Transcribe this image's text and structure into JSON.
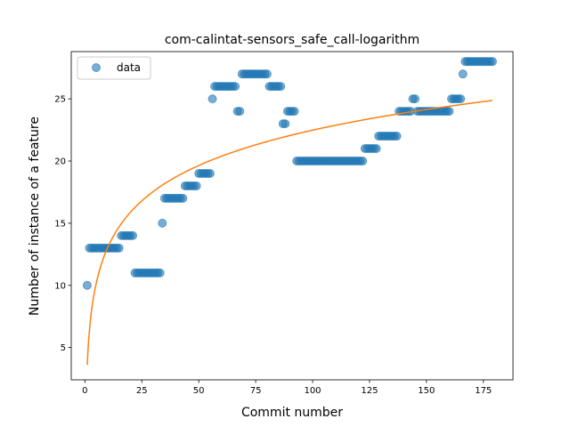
{
  "chart_data": {
    "type": "scatter",
    "title": "com-calintat-sensors_safe_call-logarithm",
    "xlabel": "Commit number",
    "ylabel": "Number of instance of a feature",
    "xlim": [
      -6,
      188
    ],
    "ylim": [
      2.4,
      28.8
    ],
    "xticks": [
      0,
      25,
      50,
      75,
      100,
      125,
      150,
      175
    ],
    "yticks": [
      5,
      10,
      15,
      20,
      25
    ],
    "grid": false,
    "legend": {
      "position": "top-left",
      "entries": [
        "data"
      ]
    },
    "colors": {
      "scatter": "#1f77b4",
      "fit": "#ff7f0e"
    },
    "series": [
      {
        "name": "data",
        "kind": "scatter",
        "runs": [
          [
            1,
            1,
            10
          ],
          [
            2,
            15,
            13
          ],
          [
            16,
            21,
            14
          ],
          [
            22,
            33,
            11
          ],
          [
            34,
            34,
            15
          ],
          [
            35,
            43,
            17
          ],
          [
            44,
            49,
            18
          ],
          [
            50,
            55,
            19
          ],
          [
            56,
            56,
            25
          ],
          [
            57,
            66,
            26
          ],
          [
            67,
            68,
            24
          ],
          [
            69,
            80,
            27
          ],
          [
            81,
            86,
            26
          ],
          [
            87,
            88,
            23
          ],
          [
            89,
            92,
            24
          ],
          [
            93,
            122,
            20
          ],
          [
            123,
            128,
            21
          ],
          [
            129,
            137,
            22
          ],
          [
            138,
            143,
            24
          ],
          [
            144,
            145,
            25
          ],
          [
            146,
            160,
            24
          ],
          [
            161,
            165,
            25
          ],
          [
            166,
            166,
            27
          ],
          [
            167,
            179,
            28
          ]
        ]
      },
      {
        "name": "",
        "kind": "line",
        "model": "a + b*ln(x)",
        "a": 3.6,
        "b": 4.1,
        "x_range": [
          1,
          179
        ]
      }
    ]
  }
}
